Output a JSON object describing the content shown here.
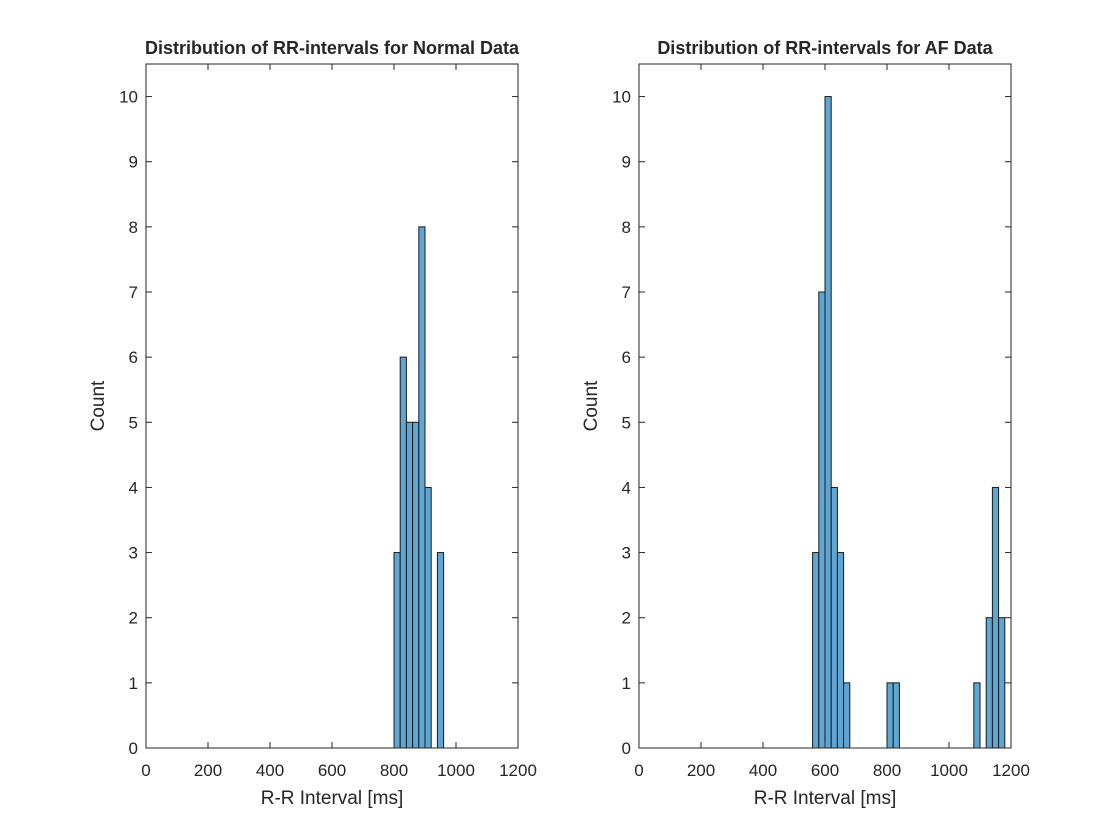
{
  "chart_data": [
    {
      "type": "histogram",
      "title": "Distribution of RR-intervals for Normal Data",
      "xlabel": "R-R Interval [ms]",
      "ylabel": "Count",
      "xlim": [
        0,
        1200
      ],
      "ylim": [
        0,
        10.5
      ],
      "xticks": [
        "0",
        "200",
        "400",
        "600",
        "800",
        "1000",
        "1200"
      ],
      "yticks": [
        "0",
        "1",
        "2",
        "3",
        "4",
        "5",
        "6",
        "7",
        "8",
        "9",
        "10"
      ],
      "bin_width": 20,
      "bars": [
        {
          "x0": 800,
          "x1": 820,
          "value": 3
        },
        {
          "x0": 820,
          "x1": 840,
          "value": 6
        },
        {
          "x0": 840,
          "x1": 860,
          "value": 5
        },
        {
          "x0": 860,
          "x1": 880,
          "value": 5
        },
        {
          "x0": 880,
          "x1": 900,
          "value": 8
        },
        {
          "x0": 900,
          "x1": 920,
          "value": 4
        },
        {
          "x0": 920,
          "x1": 940,
          "value": 0
        },
        {
          "x0": 940,
          "x1": 960,
          "value": 3
        }
      ],
      "grid": false,
      "bar_color": "#5fa6d4"
    },
    {
      "type": "histogram",
      "title": "Distribution of RR-intervals for AF Data",
      "xlabel": "R-R Interval [ms]",
      "ylabel": "Count",
      "xlim": [
        0,
        1200
      ],
      "ylim": [
        0,
        10.5
      ],
      "xticks": [
        "0",
        "200",
        "400",
        "600",
        "800",
        "1000",
        "1200"
      ],
      "yticks": [
        "0",
        "1",
        "2",
        "3",
        "4",
        "5",
        "6",
        "7",
        "8",
        "9",
        "10"
      ],
      "bin_width": 20,
      "bars": [
        {
          "x0": 560,
          "x1": 580,
          "value": 3
        },
        {
          "x0": 580,
          "x1": 600,
          "value": 7
        },
        {
          "x0": 600,
          "x1": 620,
          "value": 10
        },
        {
          "x0": 620,
          "x1": 640,
          "value": 4
        },
        {
          "x0": 640,
          "x1": 660,
          "value": 3
        },
        {
          "x0": 660,
          "x1": 680,
          "value": 1
        },
        {
          "x0": 800,
          "x1": 820,
          "value": 1
        },
        {
          "x0": 820,
          "x1": 840,
          "value": 1
        },
        {
          "x0": 1080,
          "x1": 1100,
          "value": 1
        },
        {
          "x0": 1120,
          "x1": 1140,
          "value": 2
        },
        {
          "x0": 1140,
          "x1": 1160,
          "value": 4
        },
        {
          "x0": 1160,
          "x1": 1180,
          "value": 2
        }
      ],
      "grid": false,
      "bar_color": "#5fa6d4"
    }
  ]
}
